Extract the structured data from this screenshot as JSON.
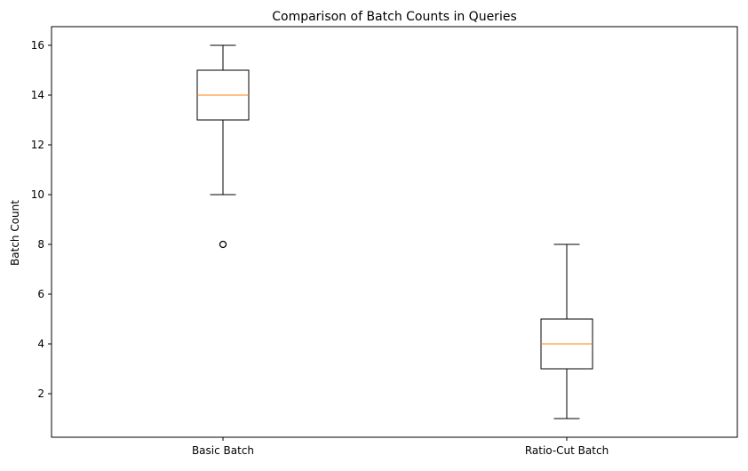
{
  "chart_data": {
    "type": "box",
    "title": "Comparison of Batch Counts in Queries",
    "xlabel": "",
    "ylabel": "Batch Count",
    "categories": [
      "Basic Batch",
      "Ratio-Cut Batch"
    ],
    "boxes": [
      {
        "category": "Basic Batch",
        "whisker_low": 10,
        "q1": 13,
        "median": 14,
        "q3": 15,
        "whisker_high": 16,
        "outliers": [
          8
        ]
      },
      {
        "category": "Ratio-Cut Batch",
        "whisker_low": 1,
        "q1": 3,
        "median": 4,
        "q3": 5,
        "whisker_high": 8,
        "outliers": []
      }
    ],
    "yticks": [
      2,
      4,
      6,
      8,
      10,
      12,
      14,
      16
    ],
    "ylim": [
      0.25,
      16.75
    ],
    "grid": false,
    "colors": {
      "box": "#000000",
      "median": "#ff7f0e",
      "outlier": "#000000"
    }
  }
}
